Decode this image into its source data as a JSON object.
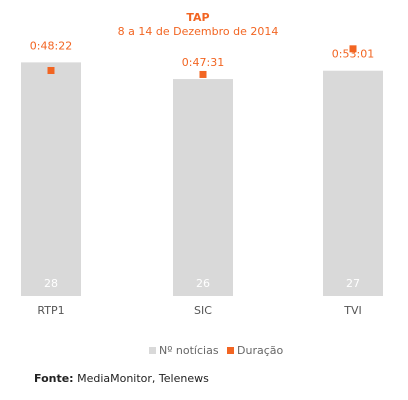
{
  "chart_data": {
    "type": "bar",
    "title": "TAP",
    "subtitle": "8 a 14 de Dezembro de 2014",
    "categories": [
      "RTP1",
      "SIC",
      "TVI"
    ],
    "series": [
      {
        "name": "Nº notícias",
        "values": [
          28,
          26,
          27
        ],
        "color": "#d9d9d9",
        "label_color": "#ffffff"
      },
      {
        "name": "Duração",
        "values": [
          "0:48:22",
          "0:47:31",
          "0:53:01"
        ],
        "seconds": [
          2902,
          2851,
          3181
        ],
        "color": "#f26522",
        "label_color": "#f26522"
      }
    ],
    "legend_position": "bottom-center",
    "grid": false
  },
  "source": {
    "label": "Fonte:",
    "text": "MediaMonitor, Telenews"
  }
}
